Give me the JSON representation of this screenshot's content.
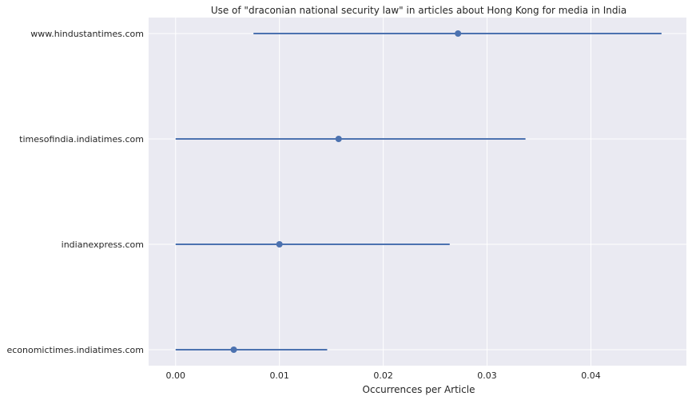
{
  "chart_data": {
    "type": "scatter",
    "title": "Use of \"draconian national security law\" in articles about Hong Kong for media in India",
    "xlabel": "Occurrences per Article",
    "ylabel": "",
    "xlim": [
      -0.0026,
      0.0492
    ],
    "xticks": [
      "0.00",
      "0.01",
      "0.02",
      "0.03",
      "0.04"
    ],
    "xtick_values": [
      0,
      0.01,
      0.02,
      0.03,
      0.04
    ],
    "grid": true,
    "categories": [
      "www.hindustantimes.com",
      "timesofindia.indiatimes.com",
      "indianexpress.com",
      "economictimes.indiatimes.com"
    ],
    "points": [
      {
        "category": "www.hindustantimes.com",
        "value": 0.0272,
        "ci_low": 0.0075,
        "ci_high": 0.0468
      },
      {
        "category": "timesofindia.indiatimes.com",
        "value": 0.0157,
        "ci_low": 0.0,
        "ci_high": 0.0337
      },
      {
        "category": "indianexpress.com",
        "value": 0.01,
        "ci_low": 0.0,
        "ci_high": 0.0264
      },
      {
        "category": "economictimes.indiatimes.com",
        "value": 0.0056,
        "ci_low": 0.0,
        "ci_high": 0.0146
      }
    ],
    "colors": {
      "background": "#eaeaf2",
      "grid": "#ffffff",
      "marker": "#4c72b0",
      "text": "#262626"
    }
  }
}
